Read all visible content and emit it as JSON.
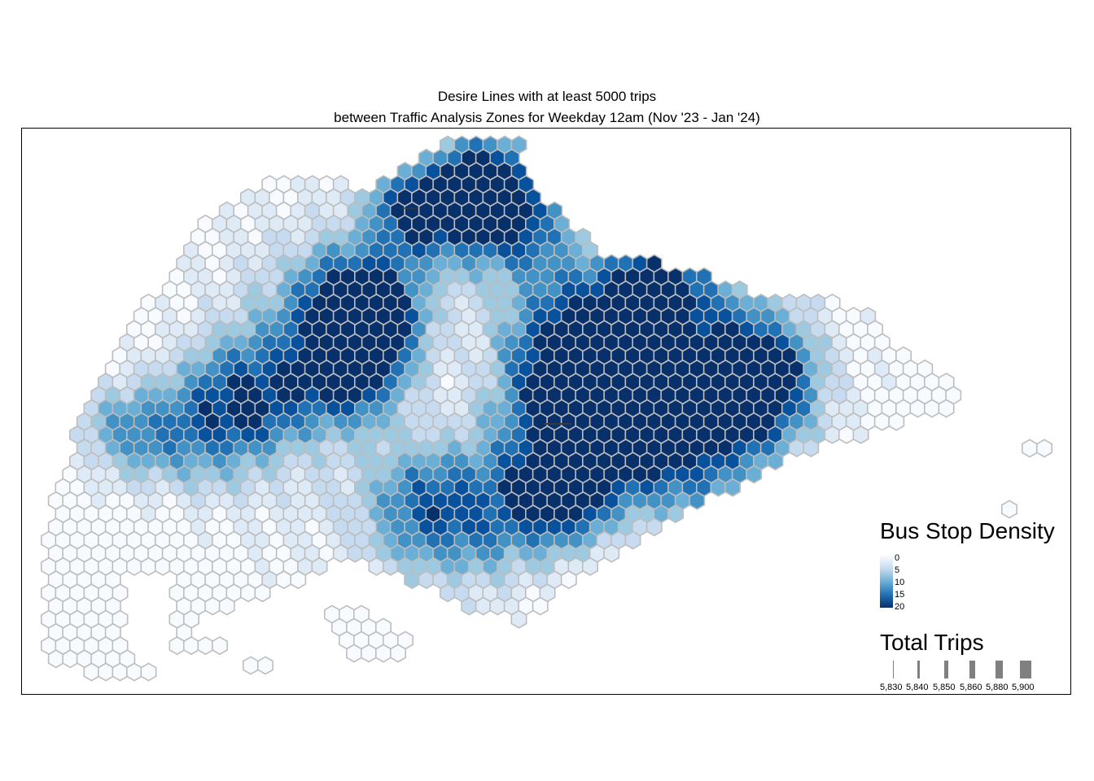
{
  "title": {
    "line1": "Desire Lines with at least 5000 trips",
    "line2": "between Traffic Analysis Zones for Weekday 12am (Nov '23 - Jan '24)"
  },
  "map": {
    "hex_stroke": "#bdbdbd",
    "line_color": "#3a3a3a",
    "palette": [
      "#f7fbff",
      "#deebf7",
      "#c6dbef",
      "#9ecae1",
      "#6baed6",
      "#4292c6",
      "#2171b5",
      "#08519c",
      "#08306b"
    ]
  },
  "legend_density": {
    "title": "Bus Stop Density",
    "ticks": [
      "0",
      "5",
      "10",
      "15",
      "20"
    ]
  },
  "legend_trips": {
    "title": "Total Trips",
    "ticks": [
      "5,830",
      "5,840",
      "5,850",
      "5,860",
      "5,880",
      "5,900"
    ]
  }
}
